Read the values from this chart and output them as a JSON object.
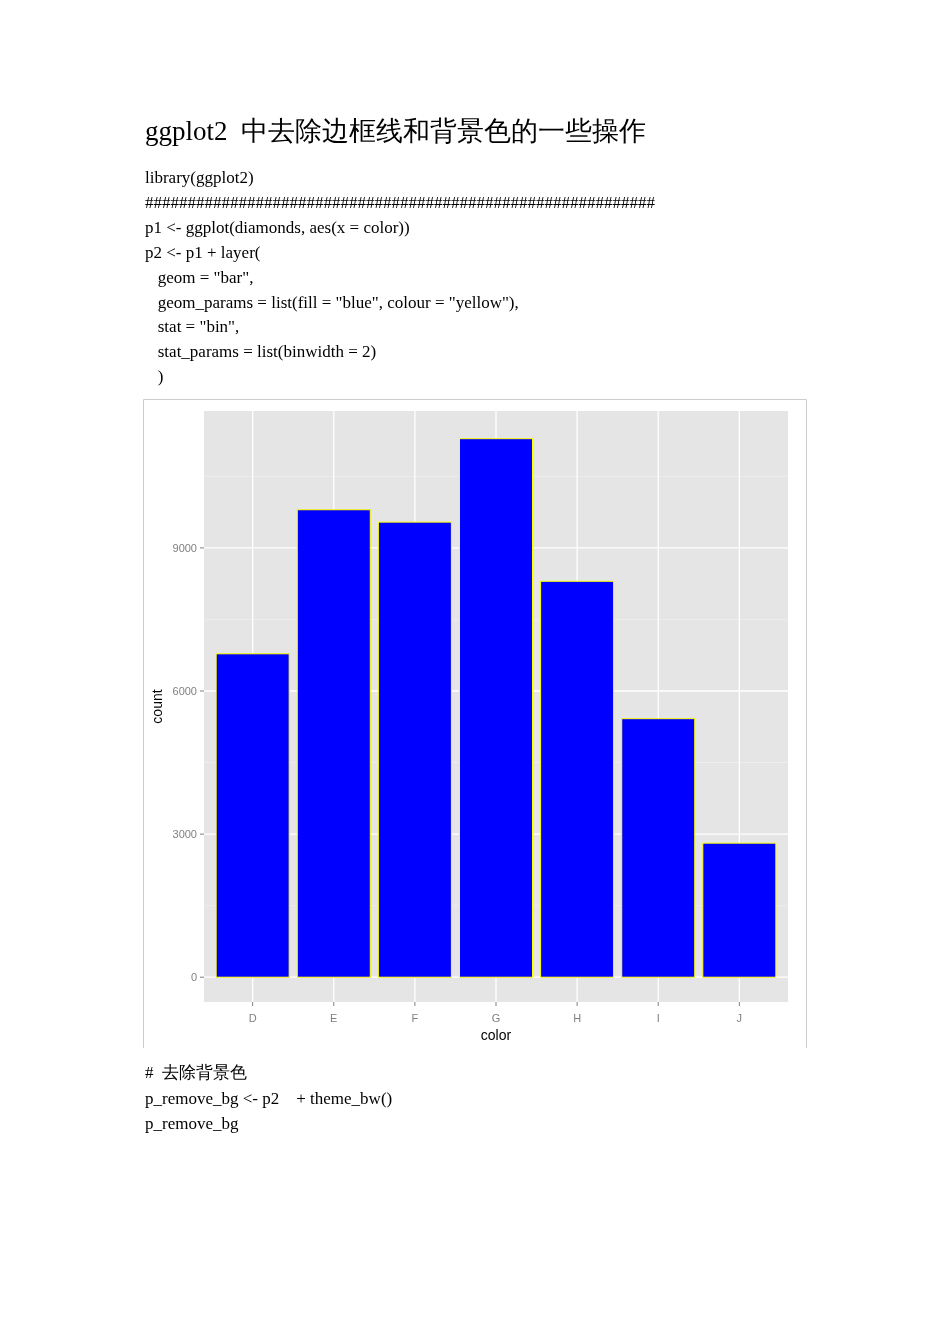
{
  "chart_data": {
    "type": "bar",
    "title": "ggplot2  中去除边框线和背景色的一些操作",
    "annotations": [
      "library(ggplot2)",
      "############################################################",
      "p1 <- ggplot(diamonds, aes(x = color))",
      "p2 <- p1 + layer(",
      "   geom = \"bar\",",
      "   geom_params = list(fill = \"blue\", colour = \"yellow\"),",
      "   stat = \"bin\",",
      "   stat_params = list(binwidth = 2)",
      "   )",
      "#  去除背景色",
      "p_remove_bg <- p2    + theme_bw()",
      "p_remove_bg"
    ],
    "categories": [
      "D",
      "E",
      "F",
      "G",
      "H",
      "I",
      "J"
    ],
    "values": [
      6780,
      9800,
      9540,
      11290,
      8300,
      5420,
      2810
    ],
    "color": "#0000ff",
    "xlabel": "color",
    "ylabel": "count",
    "ylim": [
      -520,
      11870
    ],
    "yticks": [
      0,
      3000,
      6000,
      9000
    ],
    "grid": true
  }
}
